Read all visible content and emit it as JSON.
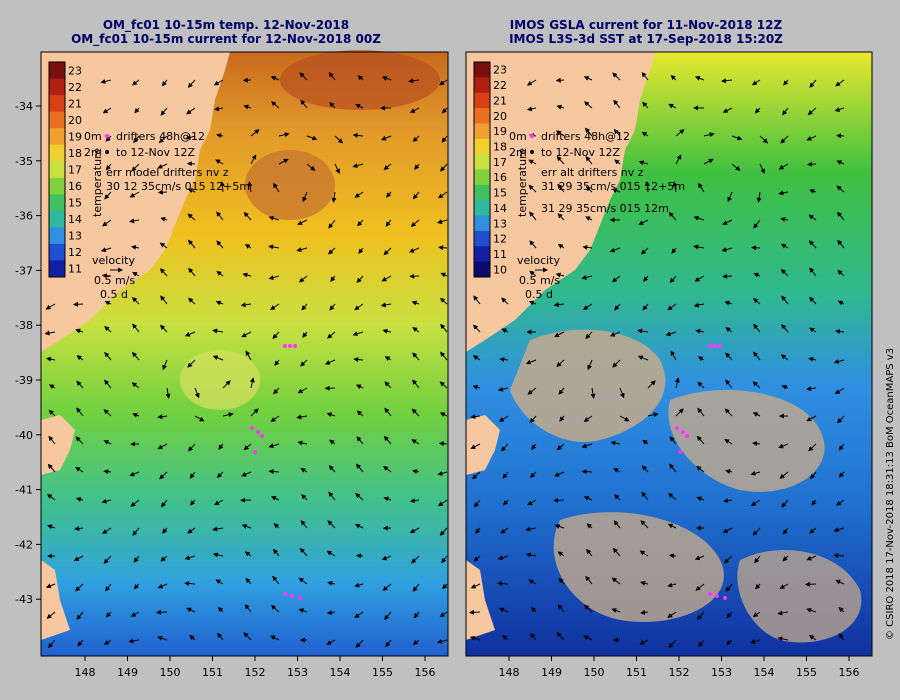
{
  "titles": {
    "left_line1": "OM_fc01 10-15m temp. 12-Nov-2018",
    "left_line2": "OM_fc01 10-15m current for 12-Nov-2018 00Z",
    "right_line1": "IMOS GSLA current for 11-Nov-2018 12Z",
    "right_line2": "IMOS L3S-3d SST at 17-Sep-2018 15:20Z"
  },
  "axes": {
    "lat_ticks": [
      "-34",
      "-35",
      "-36",
      "-37",
      "-38",
      "-39",
      "-40",
      "-41",
      "-42",
      "-43"
    ],
    "lon_ticks": [
      "148",
      "149",
      "150",
      "151",
      "152",
      "153",
      "154",
      "155",
      "156"
    ]
  },
  "left_panel": {
    "colorbar_ticks": [
      "23",
      "22",
      "21",
      "20",
      "19",
      "18",
      "17",
      "16",
      "15",
      "14",
      "13",
      "12",
      "11"
    ],
    "colorbar_label": "temperature",
    "legend_line1": "drifters 48h@12",
    "legend_line2": "to 12-Nov 12Z",
    "legend_prefix1": "0m",
    "legend_prefix2": "2m",
    "legend_line3": "err model drifters nv z",
    "legend_line4": "30 12 35cm/s 015 12+5m",
    "velocity_label": "velocity",
    "velocity_scale": "0.5 m/s",
    "velocity_days": "0.5 d"
  },
  "right_panel": {
    "colorbar_ticks": [
      "23",
      "22",
      "21",
      "20",
      "19",
      "18",
      "17",
      "16",
      "15",
      "14",
      "13",
      "12",
      "11",
      "10"
    ],
    "colorbar_label": "temperature",
    "legend_line1": "drifters 48h@12",
    "legend_line2": "to 12-Nov 12Z",
    "legend_prefix1": "0m",
    "legend_prefix2": "2m",
    "legend_line3": "err alt drifters nv z",
    "legend_line4": "31 29 35cm/s 015 12+5m",
    "legend_line5": "31 29 35cm/s 015 12m",
    "velocity_label": "velocity",
    "velocity_scale": "0.5 m/s",
    "velocity_days": "0.5 d"
  },
  "credit": "© CSIRO 2018   17-Nov-2018 18:31:13 BoM OceanMAPS v3",
  "colors": {
    "land": "#f7c8a0",
    "missing": "#c4aa8c",
    "background": "#c0c0c0",
    "drifter": "#ff33ff",
    "title": "#000066"
  }
}
